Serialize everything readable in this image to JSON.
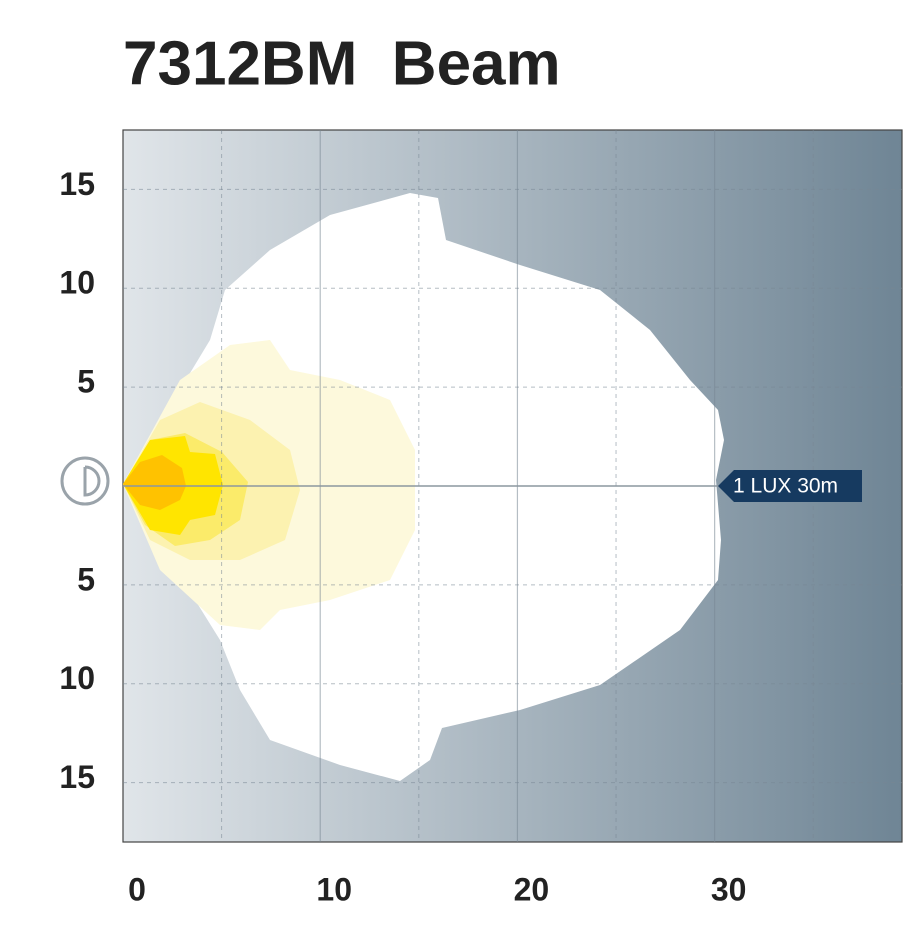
{
  "chart_data": {
    "type": "beam",
    "title": "7312BM  Beam",
    "xlim": [
      0,
      39.5
    ],
    "ylim": [
      -18,
      18
    ],
    "xticks": [
      0,
      10,
      20,
      30
    ],
    "yticks": [
      15,
      10,
      5,
      {
        "value": -5,
        "label": "5"
      },
      {
        "value": -10,
        "label": "10"
      },
      {
        "value": -15,
        "label": "15"
      }
    ],
    "annotation": "1 LUX 30m",
    "grid": true
  }
}
